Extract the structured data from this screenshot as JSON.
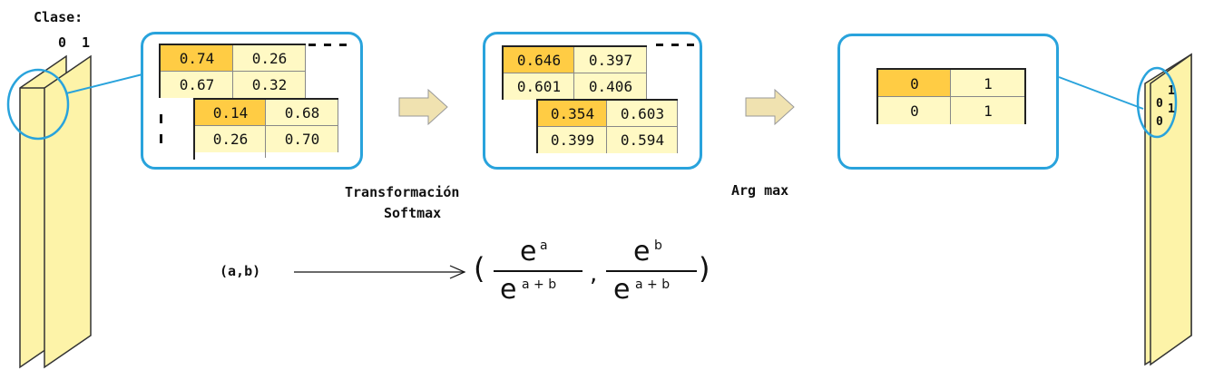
{
  "class_label": "Clase:",
  "class_indices": [
    "0",
    "1"
  ],
  "input_tables": {
    "top": [
      [
        "0.74",
        "0.26"
      ],
      [
        "0.67",
        "0.32"
      ]
    ],
    "bottom": [
      [
        "0.14",
        "0.68"
      ],
      [
        "0.26",
        "0.70"
      ]
    ]
  },
  "softmax_tables": {
    "top": [
      [
        "0.646",
        "0.397"
      ],
      [
        "0.601",
        "0.406"
      ]
    ],
    "bottom": [
      [
        "0.354",
        "0.603"
      ],
      [
        "0.399",
        "0.594"
      ]
    ]
  },
  "argmax_table": [
    [
      "0",
      "1"
    ],
    [
      "0",
      "1"
    ]
  ],
  "output_values": [
    "1",
    "0",
    "1",
    "0"
  ],
  "labels": {
    "softmax_line1": "Transformación",
    "softmax_line2": "Softmax",
    "argmax": "Arg max"
  },
  "formula": {
    "input": "(a,b)",
    "open_paren": "(",
    "close_paren": ")",
    "comma": ",",
    "base": "e",
    "num_a": "a",
    "num_b": "b",
    "den": "a + b"
  },
  "colors": {
    "highlight": "#ffcc44",
    "cell": "#fff9c4",
    "frame": "#29a3dc",
    "arrow": "#f0e2b0",
    "layer": "#fdf3a8"
  }
}
